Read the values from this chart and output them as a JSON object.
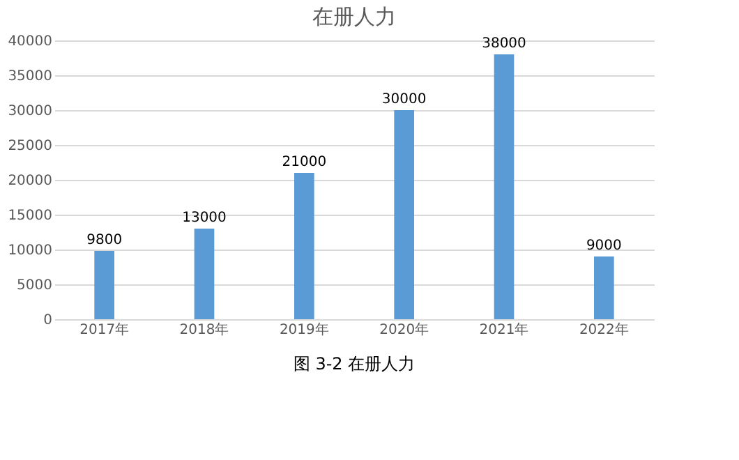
{
  "chart_data": {
    "type": "bar",
    "title": "在册人力",
    "categories": [
      "2017年",
      "2018年",
      "2019年",
      "2020年",
      "2021年",
      "2022年"
    ],
    "values": [
      9800,
      13000,
      21000,
      30000,
      38000,
      9000
    ],
    "color": "#5b9bd5",
    "data_labels": true,
    "ylim": [
      0,
      40000
    ],
    "yticks": [
      0,
      5000,
      10000,
      15000,
      20000,
      25000,
      30000,
      35000,
      40000
    ],
    "grid": "y",
    "annotations": [
      "图 3-2  在册人力"
    ]
  }
}
